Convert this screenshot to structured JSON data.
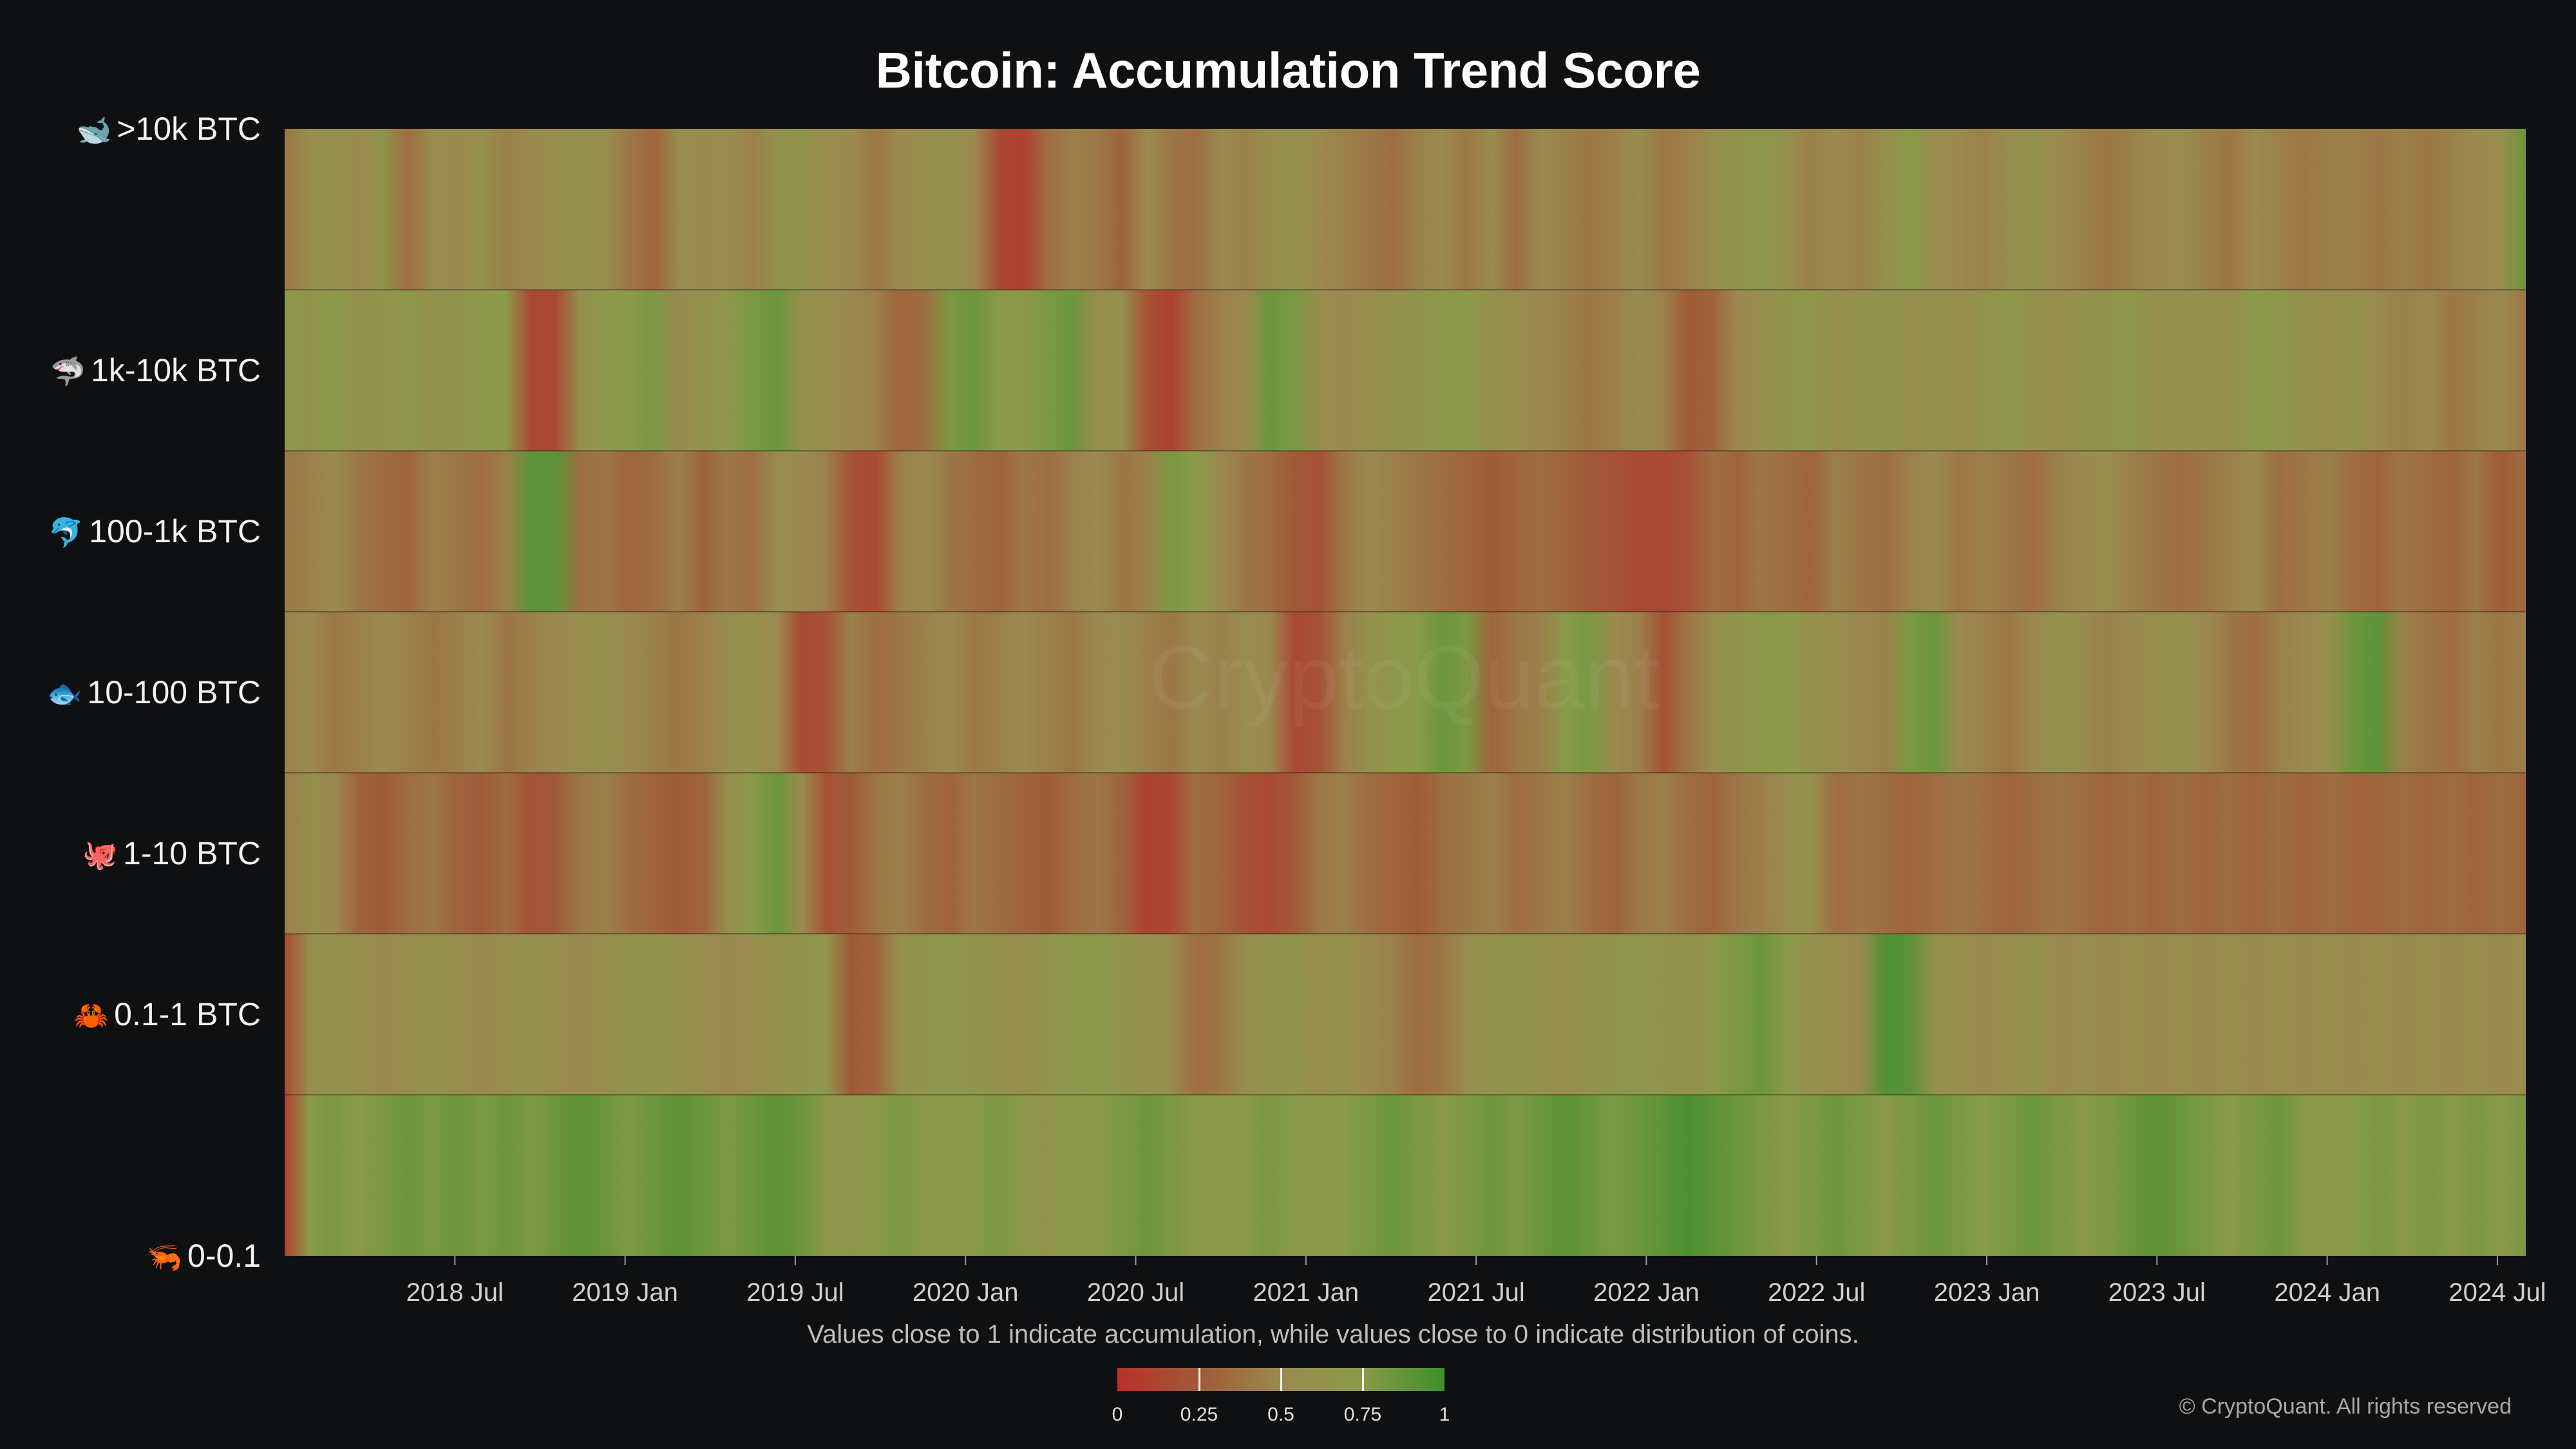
{
  "chart_data": {
    "type": "heatmap",
    "title": "Bitcoin: Accumulation Trend Score",
    "caption": "Values close to 1 indicate accumulation, while values close to 0 indicate distribution of coins.",
    "copyright": "© CryptoQuant. All rights reserved",
    "rows": [
      {
        "label": ">10k BTC",
        "icon": "whale-icon",
        "emoji": "🐋"
      },
      {
        "label": "1k-10k BTC",
        "icon": "shark-icon",
        "emoji": "🦈"
      },
      {
        "label": "100-1k BTC",
        "icon": "dolphin-icon",
        "emoji": "🐬"
      },
      {
        "label": "10-100 BTC",
        "icon": "fish-icon",
        "emoji": "🐟"
      },
      {
        "label": "1-10 BTC",
        "icon": "octopus-icon",
        "emoji": "🐙"
      },
      {
        "label": "0.1-1 BTC",
        "icon": "crab-icon",
        "emoji": "🦀"
      },
      {
        "label": "0-0.1",
        "icon": "shrimp-icon",
        "emoji": "🦐"
      }
    ],
    "x_range": [
      "2018-01",
      "2024-08"
    ],
    "x_ticks": [
      "2018 Jul",
      "2019 Jan",
      "2019 Jul",
      "2020 Jan",
      "2020 Jul",
      "2021 Jan",
      "2021 Jul",
      "2022 Jan",
      "2022 Jul",
      "2023 Jan",
      "2023 Jul",
      "2024 Jan",
      "2024 Jul"
    ],
    "colorbar": {
      "range": [
        0,
        1
      ],
      "ticks": [
        "0",
        "0.25",
        "0.5",
        "0.75",
        "1"
      ],
      "colors": [
        "#b8302a",
        "#a05a38",
        "#9a8a50",
        "#8a9a48",
        "#3f8f2c"
      ]
    },
    "series": [
      {
        "name": ">10k BTC",
        "values": [
          0.4,
          0.55,
          0.6,
          0.5,
          0.65,
          0.35,
          0.55,
          0.5,
          0.6,
          0.45,
          0.5,
          0.55,
          0.6,
          0.55,
          0.4,
          0.3,
          0.55,
          0.5,
          0.55,
          0.45,
          0.6,
          0.65,
          0.55,
          0.5,
          0.4,
          0.5,
          0.55,
          0.6,
          0.5,
          0.15,
          0.1,
          0.35,
          0.45,
          0.4,
          0.3,
          0.5,
          0.4,
          0.35,
          0.5,
          0.45,
          0.55,
          0.6,
          0.5,
          0.45,
          0.4,
          0.35,
          0.45,
          0.5,
          0.4,
          0.55,
          0.35,
          0.5,
          0.45,
          0.4,
          0.45,
          0.55,
          0.4,
          0.45,
          0.55,
          0.65,
          0.7,
          0.6,
          0.45,
          0.5,
          0.45,
          0.6,
          0.75,
          0.55,
          0.5,
          0.45,
          0.55,
          0.6,
          0.5,
          0.45,
          0.4,
          0.45,
          0.5,
          0.55,
          0.45,
          0.4,
          0.5,
          0.45,
          0.4,
          0.45,
          0.45,
          0.4,
          0.45,
          0.4,
          0.45,
          0.5,
          0.55,
          0.85
        ]
      },
      {
        "name": "1k-10k BTC",
        "values": [
          0.7,
          0.65,
          0.75,
          0.6,
          0.65,
          0.7,
          0.6,
          0.65,
          0.7,
          0.75,
          0.15,
          0.15,
          0.6,
          0.7,
          0.75,
          0.8,
          0.5,
          0.6,
          0.7,
          0.8,
          0.85,
          0.6,
          0.55,
          0.5,
          0.45,
          0.3,
          0.35,
          0.8,
          0.85,
          0.75,
          0.7,
          0.8,
          0.85,
          0.55,
          0.6,
          0.2,
          0.1,
          0.35,
          0.45,
          0.5,
          0.85,
          0.8,
          0.55,
          0.5,
          0.55,
          0.6,
          0.65,
          0.7,
          0.75,
          0.6,
          0.55,
          0.5,
          0.45,
          0.4,
          0.45,
          0.55,
          0.45,
          0.25,
          0.3,
          0.5,
          0.55,
          0.65,
          0.7,
          0.55,
          0.6,
          0.65,
          0.55,
          0.6,
          0.55,
          0.65,
          0.7,
          0.6,
          0.55,
          0.6,
          0.65,
          0.7,
          0.55,
          0.6,
          0.6,
          0.55,
          0.75,
          0.7,
          0.6,
          0.55,
          0.6,
          0.5,
          0.45,
          0.5,
          0.4,
          0.45,
          0.5,
          0.4
        ]
      },
      {
        "name": "100-1k BTC",
        "values": [
          0.4,
          0.45,
          0.5,
          0.4,
          0.35,
          0.3,
          0.45,
          0.4,
          0.35,
          0.45,
          0.9,
          0.9,
          0.35,
          0.4,
          0.3,
          0.35,
          0.45,
          0.3,
          0.4,
          0.35,
          0.55,
          0.5,
          0.45,
          0.2,
          0.15,
          0.45,
          0.5,
          0.4,
          0.35,
          0.3,
          0.4,
          0.35,
          0.45,
          0.5,
          0.4,
          0.45,
          0.8,
          0.75,
          0.5,
          0.4,
          0.35,
          0.25,
          0.2,
          0.4,
          0.5,
          0.45,
          0.4,
          0.35,
          0.3,
          0.25,
          0.3,
          0.35,
          0.3,
          0.25,
          0.2,
          0.15,
          0.15,
          0.2,
          0.35,
          0.3,
          0.4,
          0.35,
          0.3,
          0.45,
          0.4,
          0.35,
          0.45,
          0.5,
          0.4,
          0.45,
          0.4,
          0.35,
          0.45,
          0.5,
          0.55,
          0.45,
          0.4,
          0.35,
          0.4,
          0.45,
          0.5,
          0.35,
          0.4,
          0.45,
          0.35,
          0.3,
          0.4,
          0.35,
          0.3,
          0.4,
          0.25,
          0.35
        ]
      },
      {
        "name": "10-100 BTC",
        "values": [
          0.45,
          0.5,
          0.4,
          0.45,
          0.5,
          0.45,
          0.4,
          0.45,
          0.5,
          0.4,
          0.45,
          0.5,
          0.55,
          0.6,
          0.5,
          0.45,
          0.4,
          0.45,
          0.55,
          0.6,
          0.5,
          0.15,
          0.2,
          0.45,
          0.35,
          0.4,
          0.45,
          0.5,
          0.4,
          0.45,
          0.5,
          0.45,
          0.4,
          0.5,
          0.55,
          0.45,
          0.4,
          0.5,
          0.45,
          0.55,
          0.5,
          0.15,
          0.2,
          0.45,
          0.6,
          0.7,
          0.75,
          0.85,
          0.8,
          0.3,
          0.4,
          0.45,
          0.75,
          0.8,
          0.5,
          0.45,
          0.2,
          0.4,
          0.55,
          0.65,
          0.7,
          0.75,
          0.6,
          0.55,
          0.5,
          0.45,
          0.8,
          0.85,
          0.5,
          0.45,
          0.4,
          0.5,
          0.6,
          0.55,
          0.45,
          0.5,
          0.55,
          0.6,
          0.5,
          0.4,
          0.35,
          0.45,
          0.5,
          0.55,
          0.85,
          0.9,
          0.45,
          0.4,
          0.35,
          0.45,
          0.4,
          0.45
        ]
      },
      {
        "name": "1-10 BTC",
        "values": [
          0.45,
          0.55,
          0.5,
          0.3,
          0.25,
          0.35,
          0.4,
          0.3,
          0.25,
          0.35,
          0.2,
          0.25,
          0.4,
          0.45,
          0.35,
          0.3,
          0.25,
          0.3,
          0.55,
          0.75,
          0.85,
          0.5,
          0.2,
          0.25,
          0.4,
          0.45,
          0.35,
          0.3,
          0.4,
          0.35,
          0.3,
          0.25,
          0.35,
          0.4,
          0.3,
          0.1,
          0.15,
          0.35,
          0.3,
          0.2,
          0.15,
          0.25,
          0.4,
          0.45,
          0.35,
          0.3,
          0.25,
          0.35,
          0.4,
          0.45,
          0.35,
          0.4,
          0.45,
          0.35,
          0.3,
          0.4,
          0.45,
          0.35,
          0.3,
          0.4,
          0.45,
          0.55,
          0.6,
          0.35,
          0.4,
          0.35,
          0.3,
          0.35,
          0.4,
          0.35,
          0.3,
          0.35,
          0.4,
          0.35,
          0.3,
          0.35,
          0.3,
          0.35,
          0.3,
          0.35,
          0.3,
          0.35,
          0.3,
          0.35,
          0.3,
          0.3,
          0.35,
          0.3,
          0.35,
          0.3,
          0.35,
          0.3
        ]
      },
      {
        "name": "0.1-1 BTC",
        "values": [
          0.15,
          0.55,
          0.6,
          0.55,
          0.5,
          0.55,
          0.6,
          0.55,
          0.5,
          0.55,
          0.6,
          0.55,
          0.5,
          0.55,
          0.6,
          0.65,
          0.6,
          0.55,
          0.5,
          0.55,
          0.6,
          0.65,
          0.7,
          0.25,
          0.3,
          0.6,
          0.65,
          0.7,
          0.65,
          0.6,
          0.55,
          0.65,
          0.7,
          0.75,
          0.65,
          0.6,
          0.55,
          0.35,
          0.4,
          0.55,
          0.6,
          0.65,
          0.55,
          0.6,
          0.5,
          0.45,
          0.35,
          0.4,
          0.55,
          0.6,
          0.65,
          0.6,
          0.55,
          0.6,
          0.65,
          0.7,
          0.65,
          0.6,
          0.7,
          0.8,
          0.85,
          0.75,
          0.6,
          0.55,
          0.5,
          0.95,
          0.9,
          0.6,
          0.55,
          0.5,
          0.55,
          0.6,
          0.5,
          0.55,
          0.5,
          0.55,
          0.5,
          0.55,
          0.5,
          0.55,
          0.5,
          0.55,
          0.5,
          0.55,
          0.5,
          0.55,
          0.5,
          0.55,
          0.5,
          0.55,
          0.5,
          0.55
        ]
      },
      {
        "name": "0-0.1",
        "values": [
          0.1,
          0.75,
          0.8,
          0.75,
          0.8,
          0.85,
          0.8,
          0.85,
          0.8,
          0.85,
          0.8,
          0.85,
          0.9,
          0.85,
          0.8,
          0.85,
          0.9,
          0.85,
          0.8,
          0.85,
          0.9,
          0.85,
          0.7,
          0.65,
          0.75,
          0.8,
          0.75,
          0.7,
          0.75,
          0.8,
          0.7,
          0.65,
          0.75,
          0.7,
          0.8,
          0.85,
          0.8,
          0.75,
          0.7,
          0.75,
          0.8,
          0.75,
          0.7,
          0.75,
          0.8,
          0.85,
          0.8,
          0.75,
          0.8,
          0.85,
          0.8,
          0.85,
          0.9,
          0.85,
          0.8,
          0.85,
          0.9,
          0.95,
          0.9,
          0.85,
          0.8,
          0.75,
          0.8,
          0.85,
          0.8,
          0.75,
          0.8,
          0.85,
          0.8,
          0.75,
          0.8,
          0.85,
          0.8,
          0.75,
          0.8,
          0.85,
          0.9,
          0.85,
          0.8,
          0.75,
          0.8,
          0.85,
          0.75,
          0.7,
          0.75,
          0.8,
          0.75,
          0.8,
          0.75,
          0.8,
          0.75,
          0.8
        ]
      }
    ],
    "watermark": "CryptoQuant"
  }
}
